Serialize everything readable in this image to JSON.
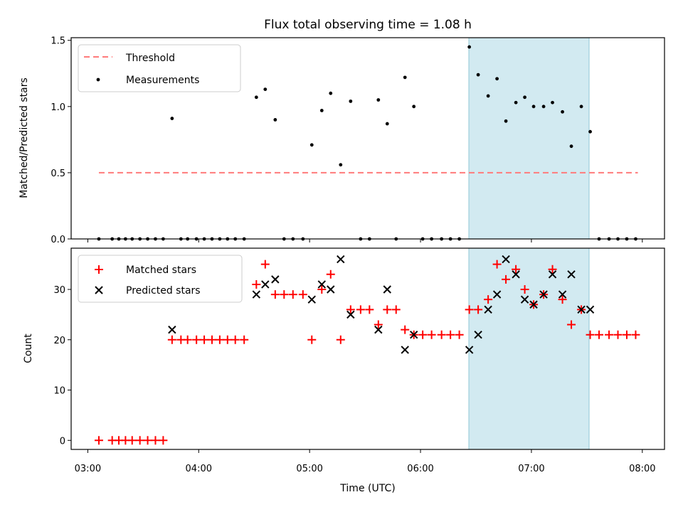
{
  "chart_data": [
    {
      "type": "scatter",
      "title": "Flux total observing time = 1.08 h",
      "xlabel": "",
      "ylabel": "Matched/Predicted stars",
      "ylim": [
        0,
        1.52
      ],
      "yticks": [
        "0.0",
        "0.5",
        "1.0",
        "1.5"
      ],
      "ytick_values": [
        0,
        0.5,
        1.0,
        1.5
      ],
      "grid": false,
      "legend_placement": "top-left",
      "x_unit": "hours since 03:00 UTC",
      "highlight_span": [
        3.436,
        4.52
      ],
      "threshold": {
        "name": "Threshold",
        "y": 0.5,
        "x_range": [
          0.1,
          4.96
        ],
        "color": "#ff7b7b"
      },
      "series": [
        {
          "name": "Measurements",
          "color": "#000000",
          "x": [
            0.1,
            0.22,
            0.28,
            0.34,
            0.4,
            0.47,
            0.54,
            0.61,
            0.68,
            0.76,
            0.84,
            0.9,
            0.98,
            1.05,
            1.12,
            1.19,
            1.26,
            1.33,
            1.41,
            1.52,
            1.6,
            1.69,
            1.77,
            1.85,
            1.94,
            2.02,
            2.11,
            2.19,
            2.28,
            2.37,
            2.46,
            2.54,
            2.62,
            2.7,
            2.78,
            2.86,
            2.94,
            3.02,
            3.1,
            3.19,
            3.27,
            3.35,
            3.44,
            3.52,
            3.61,
            3.69,
            3.77,
            3.86,
            3.94,
            4.02,
            4.11,
            4.19,
            4.28,
            4.36,
            4.45,
            4.53,
            4.61,
            4.7,
            4.78,
            4.86,
            4.94
          ],
          "y": [
            0,
            0,
            0,
            0,
            0,
            0,
            0,
            0,
            0,
            0.91,
            0,
            0,
            0,
            0,
            0,
            0,
            0,
            0,
            0,
            1.07,
            1.13,
            0.9,
            0,
            0,
            0,
            0.71,
            0.97,
            1.1,
            0.56,
            1.04,
            0,
            0,
            1.05,
            0.87,
            0,
            1.22,
            1.0,
            0,
            0,
            0,
            0,
            0,
            1.45,
            1.24,
            1.08,
            1.21,
            0.89,
            1.03,
            1.07,
            1.0,
            1.0,
            1.03,
            0.96,
            0.7,
            1.0,
            0.81,
            0,
            0,
            0,
            0,
            0
          ]
        }
      ]
    },
    {
      "type": "scatter",
      "title": "",
      "xlabel": "Time (UTC)",
      "ylabel": "Count",
      "ylim": [
        -1.8,
        38.2
      ],
      "yticks": [
        "0",
        "10",
        "20",
        "30"
      ],
      "ytick_values": [
        0,
        10,
        20,
        30
      ],
      "xlim": [
        -0.15,
        5.2
      ],
      "xticks": [
        "03:00",
        "04:00",
        "05:00",
        "06:00",
        "07:00",
        "08:00"
      ],
      "xtick_values": [
        0,
        1,
        2,
        3,
        4,
        5
      ],
      "grid": false,
      "legend_placement": "top-left",
      "highlight_span": [
        3.436,
        4.52
      ],
      "series": [
        {
          "name": "Matched stars",
          "marker": "plus",
          "color": "#ff0000",
          "x": [
            0.1,
            0.22,
            0.28,
            0.34,
            0.4,
            0.47,
            0.54,
            0.61,
            0.68,
            0.76,
            0.84,
            0.9,
            0.98,
            1.05,
            1.12,
            1.19,
            1.26,
            1.33,
            1.41,
            1.52,
            1.6,
            1.69,
            1.77,
            1.85,
            1.94,
            2.02,
            2.11,
            2.19,
            2.28,
            2.37,
            2.46,
            2.54,
            2.62,
            2.7,
            2.78,
            2.86,
            2.94,
            3.02,
            3.1,
            3.19,
            3.27,
            3.35,
            3.44,
            3.52,
            3.61,
            3.69,
            3.77,
            3.86,
            3.94,
            4.02,
            4.11,
            4.19,
            4.28,
            4.36,
            4.45,
            4.53,
            4.61,
            4.7,
            4.78,
            4.86,
            4.94
          ],
          "y": [
            0,
            0,
            0,
            0,
            0,
            0,
            0,
            0,
            0,
            20,
            20,
            20,
            20,
            20,
            20,
            20,
            20,
            20,
            20,
            31,
            35,
            29,
            29,
            29,
            29,
            20,
            30,
            33,
            20,
            26,
            26,
            26,
            23,
            26,
            26,
            22,
            21,
            21,
            21,
            21,
            21,
            21,
            26,
            26,
            28,
            35,
            32,
            34,
            30,
            27,
            29,
            34,
            28,
            23,
            26,
            21,
            21,
            21,
            21,
            21,
            21
          ]
        },
        {
          "name": "Predicted stars",
          "marker": "x",
          "color": "#000000",
          "x": [
            0.76,
            1.52,
            1.6,
            1.69,
            2.02,
            2.11,
            2.19,
            2.28,
            2.37,
            2.62,
            2.7,
            2.86,
            2.94,
            3.44,
            3.52,
            3.61,
            3.69,
            3.77,
            3.86,
            3.94,
            4.02,
            4.11,
            4.19,
            4.28,
            4.36,
            4.45,
            4.53
          ],
          "y": [
            22,
            29,
            31,
            32,
            28,
            31,
            30,
            36,
            25,
            22,
            30,
            18,
            21,
            18,
            21,
            26,
            29,
            36,
            33,
            28,
            27,
            29,
            33,
            29,
            33,
            26,
            26
          ]
        }
      ]
    }
  ]
}
